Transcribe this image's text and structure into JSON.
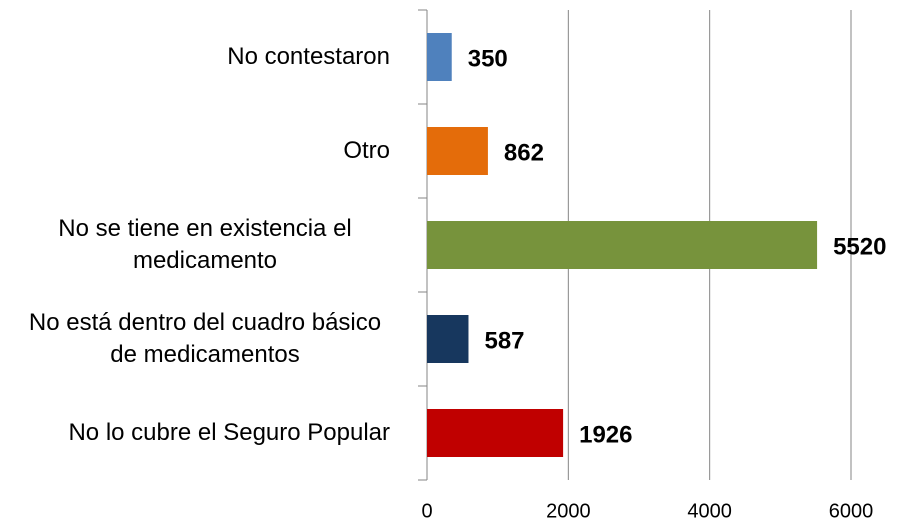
{
  "chart_data": {
    "type": "barh",
    "categories": [
      "No contestaron",
      "Otro",
      "No se tiene en existencia el medicamento",
      "No está dentro del cuadro básico de medicamentos",
      "No lo cubre el Seguro Popular"
    ],
    "values": [
      350,
      862,
      5520,
      587,
      1926
    ],
    "colors": [
      "#4f81bd",
      "#e46c0a",
      "#77933c",
      "#17375e",
      "#c00000"
    ],
    "xlim": [
      0,
      6000
    ],
    "xticks": [
      0,
      2000,
      4000,
      6000
    ],
    "grid": true
  }
}
